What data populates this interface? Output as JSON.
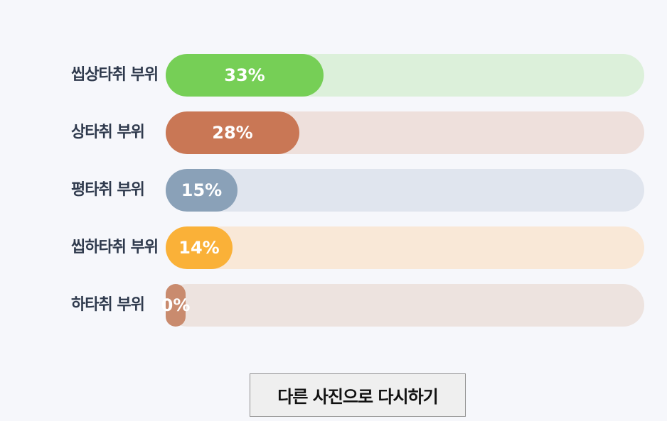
{
  "results": [
    {
      "label": "씹상타취 부위",
      "percent": 33,
      "percent_text": "33%",
      "fill_color": "#76cf56",
      "track_color": "#dcf0da"
    },
    {
      "label": "상타취 부위",
      "percent": 28,
      "percent_text": "28%",
      "fill_color": "#c97755",
      "track_color": "#eee0dc"
    },
    {
      "label": "평타취 부위",
      "percent": 15,
      "percent_text": "15%",
      "fill_color": "#8aa1b8",
      "track_color": "#e0e5ee"
    },
    {
      "label": "씹하타취 부위",
      "percent": 14,
      "percent_text": "14%",
      "fill_color": "#fab138",
      "track_color": "#f9e8d7"
    },
    {
      "label": "하타취 부위",
      "percent": 0,
      "percent_text": "0%",
      "fill_color": "#c98b6e",
      "track_color": "#ede3df"
    }
  ],
  "retry_button": {
    "label": "다른 사진으로 다시하기"
  }
}
